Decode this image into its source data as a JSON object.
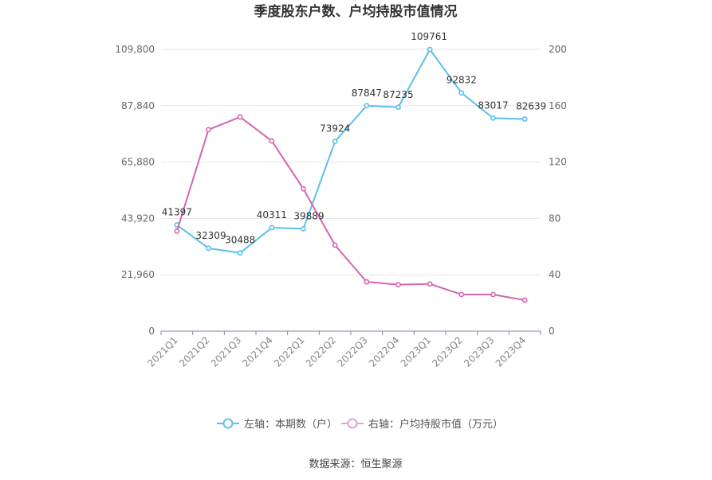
{
  "chart_data": {
    "type": "line",
    "title": "季度股东户数、户均持股市值情况",
    "categories": [
      "2021Q1",
      "2021Q2",
      "2021Q3",
      "2021Q4",
      "2022Q1",
      "2022Q2",
      "2022Q3",
      "2022Q4",
      "2023Q1",
      "2023Q2",
      "2023Q3",
      "2023Q4"
    ],
    "left_axis": {
      "ticks": [
        "0",
        "21,960",
        "43,920",
        "65,880",
        "87,840",
        "109,800"
      ],
      "ylim": [
        0,
        109800
      ]
    },
    "right_axis": {
      "ticks": [
        "0",
        "40",
        "80",
        "120",
        "160",
        "200"
      ],
      "ylim": [
        0,
        200
      ]
    },
    "series": [
      {
        "name": "左轴：本期数（户）",
        "axis": "left",
        "color": "#5bc0eb",
        "values": [
          41397,
          32309,
          30488,
          40311,
          39889,
          73924,
          87847,
          87235,
          109761,
          92832,
          83017,
          82639
        ],
        "labels": [
          "41397",
          "32309",
          "30488",
          "40311",
          "39889",
          "73924",
          "87847",
          "87235",
          "109761",
          "92832",
          "83017",
          "82639"
        ]
      },
      {
        "name": "右轴：户均持股市值（万元）",
        "axis": "right",
        "color": "#d465b0",
        "values": [
          71,
          143,
          152,
          135,
          101,
          61,
          35,
          33,
          33.5,
          26,
          26,
          22
        ]
      }
    ],
    "grid": true,
    "legend": "bottom"
  },
  "footer": {
    "source": "数据来源：恒生聚源"
  }
}
